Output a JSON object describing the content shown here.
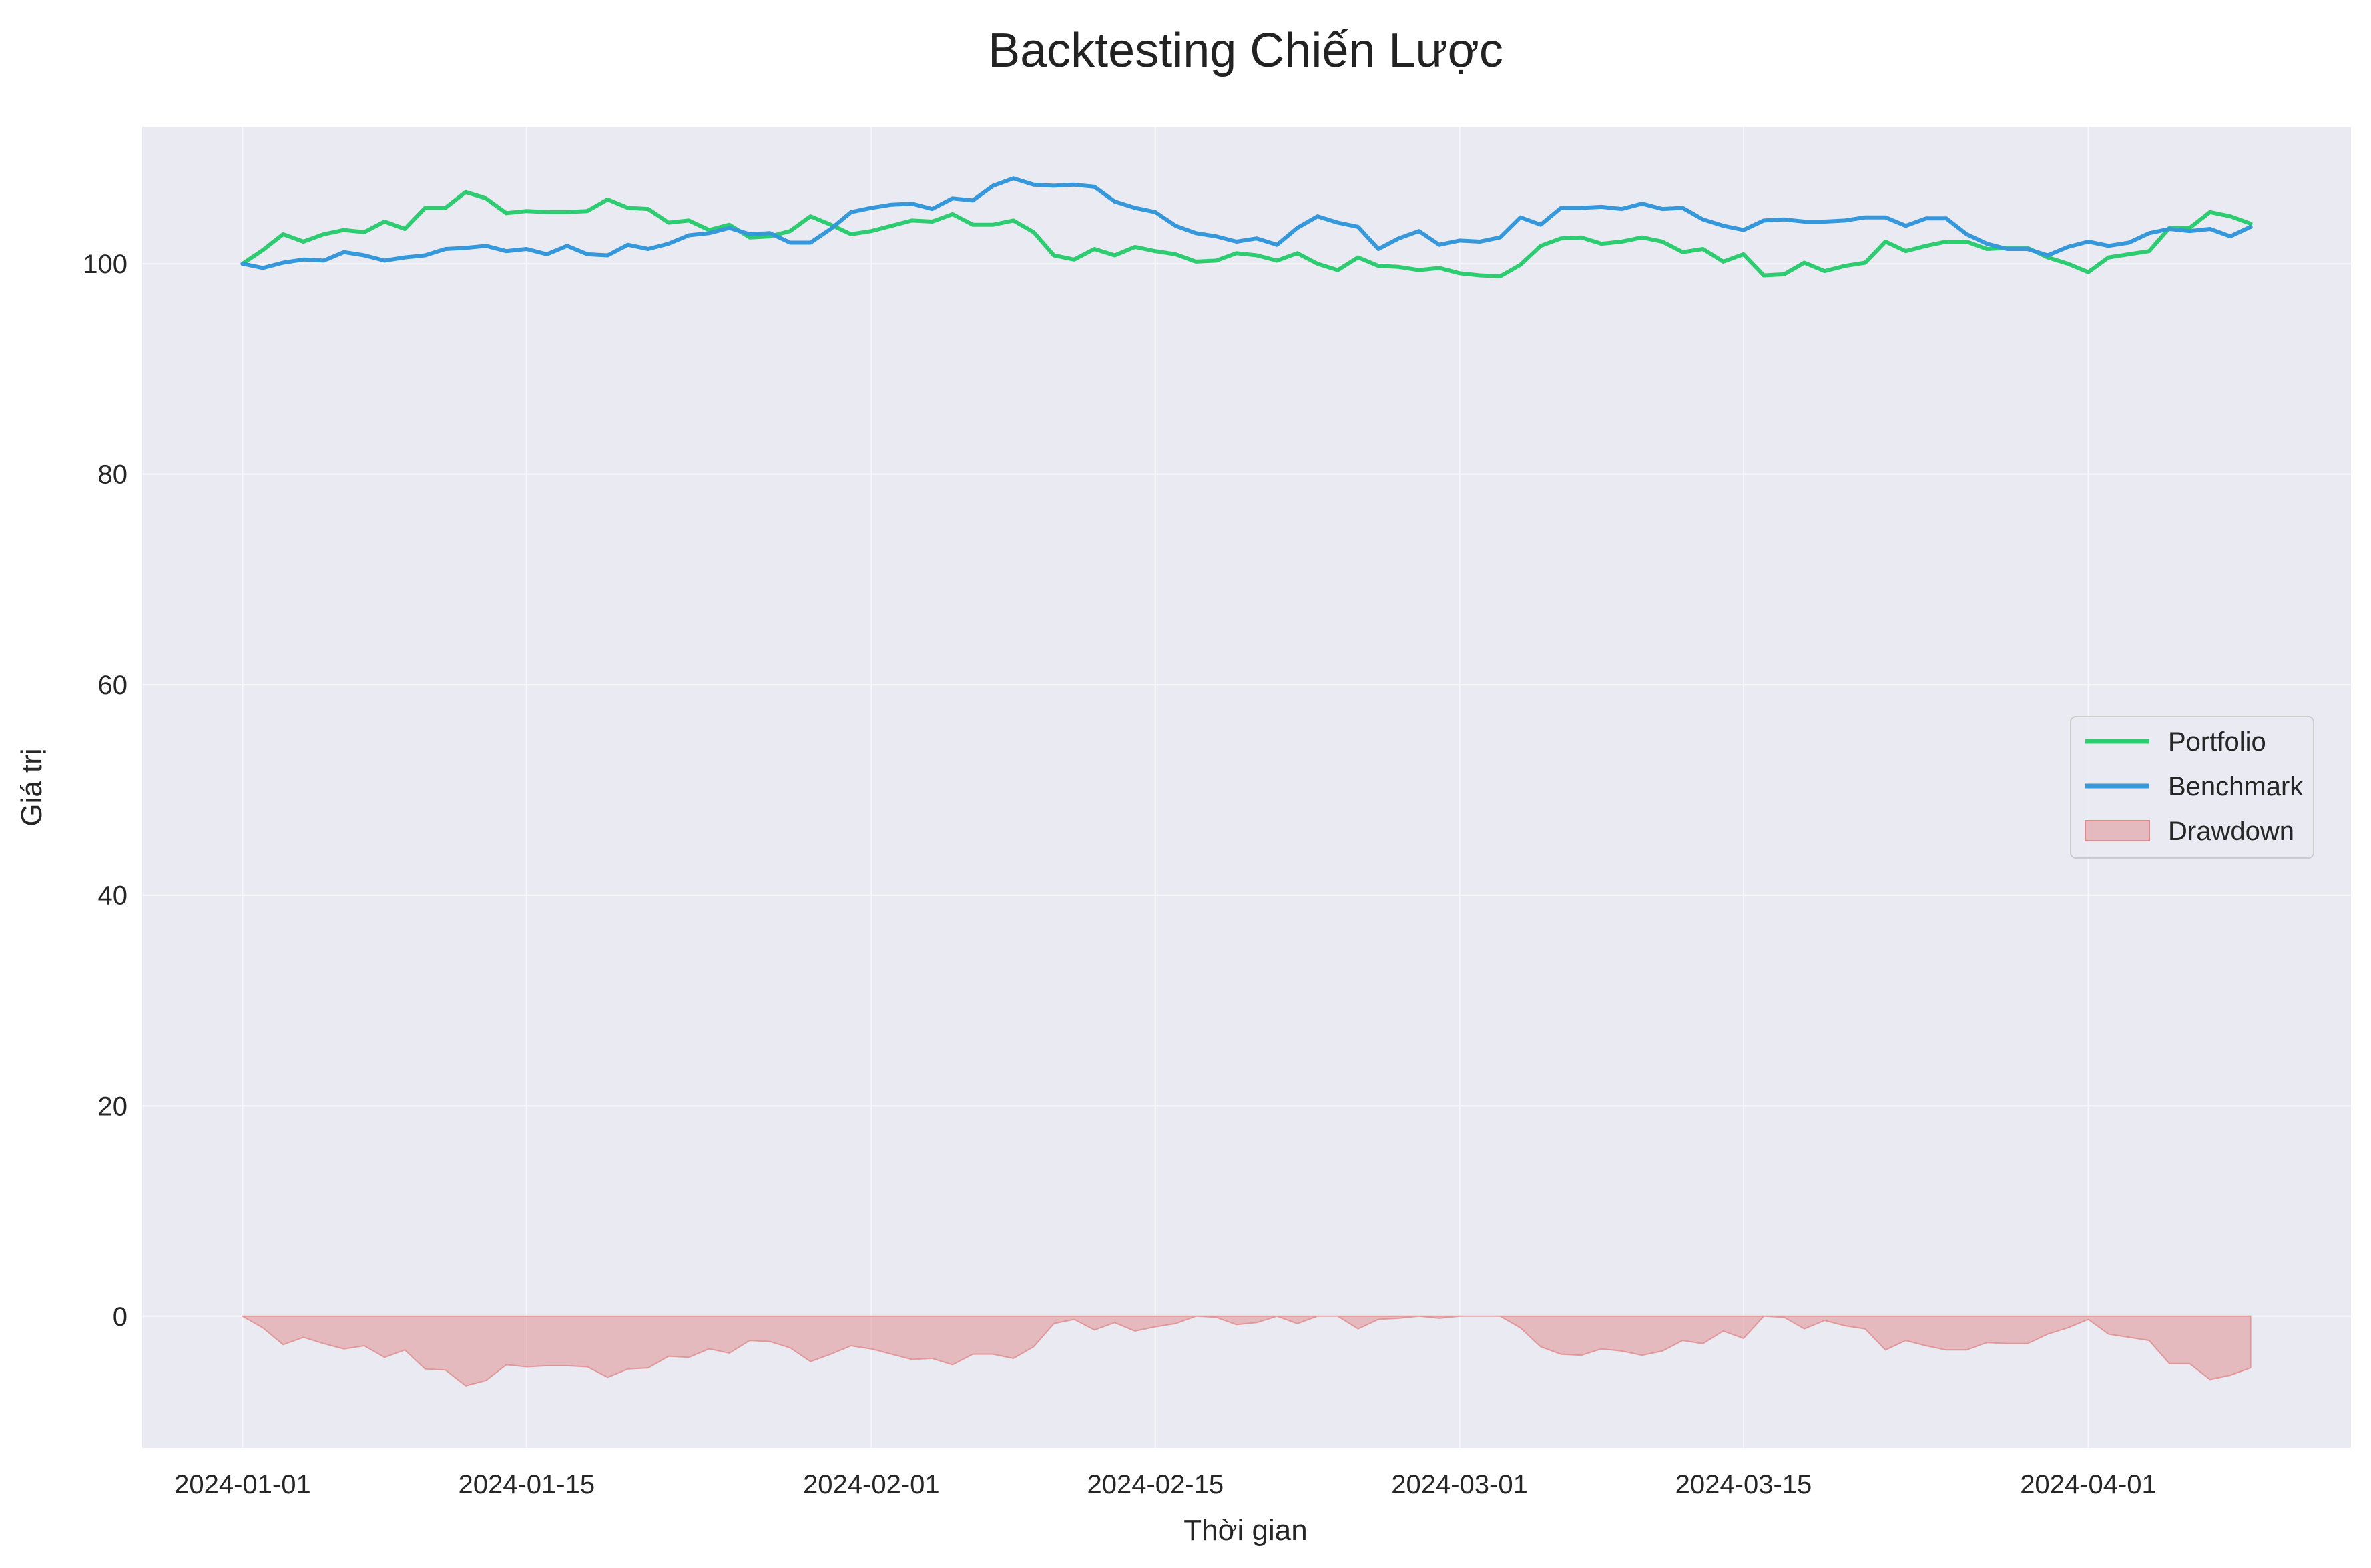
{
  "chart_data": {
    "type": "line",
    "title": "Backtesting Chiến Lược",
    "xlabel": "Thời gian",
    "ylabel": "Giá trị",
    "ylim": [
      -12.5,
      113
    ],
    "grid": true,
    "legend_position": "center-right",
    "x_ticks": [
      "2024-01-01",
      "2024-01-15",
      "2024-02-01",
      "2024-02-15",
      "2024-03-01",
      "2024-03-15",
      "2024-04-01"
    ],
    "y_ticks": [
      "0",
      "20",
      "40",
      "60",
      "80",
      "100"
    ],
    "x": [
      "2024-01-01",
      "2024-01-02",
      "2024-01-03",
      "2024-01-04",
      "2024-01-05",
      "2024-01-06",
      "2024-01-07",
      "2024-01-08",
      "2024-01-09",
      "2024-01-10",
      "2024-01-11",
      "2024-01-12",
      "2024-01-13",
      "2024-01-14",
      "2024-01-15",
      "2024-01-16",
      "2024-01-17",
      "2024-01-18",
      "2024-01-19",
      "2024-01-20",
      "2024-01-21",
      "2024-01-22",
      "2024-01-23",
      "2024-01-24",
      "2024-01-25",
      "2024-01-26",
      "2024-01-27",
      "2024-01-28",
      "2024-01-29",
      "2024-01-30",
      "2024-01-31",
      "2024-02-01",
      "2024-02-02",
      "2024-02-03",
      "2024-02-04",
      "2024-02-05",
      "2024-02-06",
      "2024-02-07",
      "2024-02-08",
      "2024-02-09",
      "2024-02-10",
      "2024-02-11",
      "2024-02-12",
      "2024-02-13",
      "2024-02-14",
      "2024-02-15",
      "2024-02-16",
      "2024-02-17",
      "2024-02-18",
      "2024-02-19",
      "2024-02-20",
      "2024-02-21",
      "2024-02-22",
      "2024-02-23",
      "2024-02-24",
      "2024-02-25",
      "2024-02-26",
      "2024-02-27",
      "2024-02-28",
      "2024-02-29",
      "2024-03-01",
      "2024-03-02",
      "2024-03-03",
      "2024-03-04",
      "2024-03-05",
      "2024-03-06",
      "2024-03-07",
      "2024-03-08",
      "2024-03-09",
      "2024-03-10",
      "2024-03-11",
      "2024-03-12",
      "2024-03-13",
      "2024-03-14",
      "2024-03-15",
      "2024-03-16",
      "2024-03-17",
      "2024-03-18",
      "2024-03-19",
      "2024-03-20",
      "2024-03-21",
      "2024-03-22",
      "2024-03-23",
      "2024-03-24",
      "2024-03-25",
      "2024-03-26",
      "2024-03-27",
      "2024-03-28",
      "2024-03-29",
      "2024-03-30",
      "2024-03-31",
      "2024-04-01",
      "2024-04-02",
      "2024-04-03",
      "2024-04-04",
      "2024-04-05",
      "2024-04-06",
      "2024-04-07",
      "2024-04-08",
      "2024-04-09"
    ],
    "series": [
      {
        "name": "Portfolio",
        "color": "#2ecc71",
        "values": [
          100.0,
          101.3,
          102.8,
          102.1,
          102.8,
          103.2,
          103.0,
          104.0,
          103.3,
          105.3,
          105.3,
          106.8,
          106.2,
          104.8,
          105.0,
          104.9,
          104.9,
          105.0,
          106.1,
          105.3,
          105.2,
          103.9,
          104.1,
          103.2,
          103.7,
          102.5,
          102.6,
          103.1,
          104.5,
          103.7,
          102.8,
          103.1,
          103.6,
          104.1,
          104.0,
          104.7,
          103.7,
          103.7,
          104.1,
          103.0,
          100.8,
          100.4,
          101.4,
          100.8,
          101.6,
          101.2,
          100.9,
          100.2,
          100.3,
          101.0,
          100.8,
          100.3,
          101.0,
          100.0,
          99.4,
          100.6,
          99.8,
          99.7,
          99.4,
          99.6,
          99.1,
          98.9,
          98.8,
          99.9,
          101.7,
          102.4,
          102.5,
          101.9,
          102.1,
          102.5,
          102.1,
          101.1,
          101.4,
          100.2,
          100.9,
          98.9,
          99.0,
          100.1,
          99.3,
          99.8,
          100.1,
          102.1,
          101.2,
          101.7,
          102.1,
          102.1,
          101.4,
          101.5,
          101.5,
          100.6,
          100.0,
          99.2,
          100.6,
          100.9,
          101.2,
          103.4,
          103.4,
          104.9,
          104.5,
          103.8
        ]
      },
      {
        "name": "Benchmark",
        "color": "#3498db",
        "values": [
          100.0,
          99.6,
          100.1,
          100.4,
          100.3,
          101.1,
          100.8,
          100.3,
          100.6,
          100.8,
          101.4,
          101.5,
          101.7,
          101.2,
          101.4,
          100.9,
          101.7,
          100.9,
          100.8,
          101.8,
          101.4,
          101.9,
          102.7,
          102.9,
          103.4,
          102.8,
          102.9,
          102.0,
          102.0,
          103.3,
          104.9,
          105.3,
          105.6,
          105.7,
          105.2,
          106.2,
          106.0,
          107.4,
          108.1,
          107.5,
          107.4,
          107.5,
          107.3,
          105.9,
          105.3,
          104.9,
          103.6,
          102.9,
          102.6,
          102.1,
          102.4,
          101.8,
          103.4,
          104.5,
          103.9,
          103.5,
          101.4,
          102.4,
          103.1,
          101.8,
          102.2,
          102.1,
          102.5,
          104.4,
          103.7,
          105.3,
          105.3,
          105.4,
          105.2,
          105.7,
          105.2,
          105.3,
          104.2,
          103.6,
          103.2,
          104.1,
          104.2,
          104.0,
          104.0,
          104.1,
          104.4,
          104.4,
          103.6,
          104.3,
          104.3,
          102.8,
          101.9,
          101.4,
          101.4,
          100.8,
          101.6,
          102.1,
          101.7,
          102.0,
          102.9,
          103.3,
          103.1,
          103.3,
          102.6,
          103.5
        ]
      },
      {
        "name": "Drawdown",
        "color": "#e08a8a",
        "values": [
          0.0,
          -1.1,
          -2.7,
          -2.0,
          -2.6,
          -3.1,
          -2.8,
          -3.9,
          -3.2,
          -5.0,
          -5.1,
          -6.6,
          -6.1,
          -4.6,
          -4.8,
          -4.7,
          -4.7,
          -4.8,
          -5.8,
          -5.0,
          -4.9,
          -3.8,
          -3.9,
          -3.1,
          -3.5,
          -2.3,
          -2.4,
          -3.0,
          -4.3,
          -3.6,
          -2.8,
          -3.1,
          -3.6,
          -4.1,
          -4.0,
          -4.6,
          -3.6,
          -3.6,
          -4.0,
          -2.9,
          -0.7,
          -0.3,
          -1.3,
          -0.6,
          -1.4,
          -1.0,
          -0.7,
          0.0,
          -0.1,
          -0.8,
          -0.6,
          0.0,
          -0.7,
          0.0,
          0.0,
          -1.2,
          -0.3,
          -0.2,
          0.0,
          -0.2,
          0.0,
          0.0,
          0.0,
          -1.1,
          -2.9,
          -3.6,
          -3.7,
          -3.1,
          -3.3,
          -3.7,
          -3.3,
          -2.3,
          -2.6,
          -1.4,
          -2.1,
          0.0,
          -0.1,
          -1.2,
          -0.4,
          -0.9,
          -1.2,
          -3.2,
          -2.3,
          -2.8,
          -3.2,
          -3.2,
          -2.5,
          -2.6,
          -2.6,
          -1.7,
          -1.1,
          -0.3,
          -1.7,
          -2.0,
          -2.3,
          -4.5,
          -4.5,
          -6.0,
          -5.6,
          -4.9
        ]
      }
    ]
  }
}
